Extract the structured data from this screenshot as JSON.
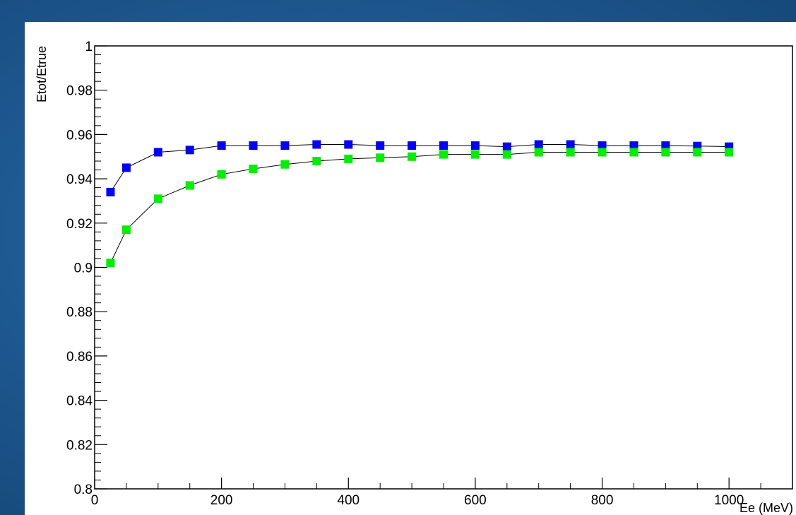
{
  "chart_data": {
    "type": "scatter",
    "title": "",
    "xlabel": "Ee (MeV)",
    "ylabel": "Etot/Etrue",
    "xlim": [
      0,
      1100
    ],
    "ylim": [
      0.8,
      1.0
    ],
    "x_ticks": [
      0,
      200,
      400,
      600,
      800,
      1000
    ],
    "x_tick_labels": [
      "0",
      "200",
      "400",
      "600",
      "800",
      "1000"
    ],
    "y_ticks": [
      0.8,
      0.82,
      0.84,
      0.86,
      0.88,
      0.9,
      0.92,
      0.94,
      0.96,
      0.98,
      1.0
    ],
    "y_tick_labels": [
      "0.8",
      "0.82",
      "0.84",
      "0.86",
      "0.88",
      "0.9",
      "0.92",
      "0.94",
      "0.96",
      "0.98",
      "1"
    ],
    "grid": false,
    "markers": "square",
    "connected": true,
    "series": [
      {
        "color": "#0000ff",
        "x": [
          25,
          50,
          100,
          150,
          200,
          250,
          300,
          350,
          400,
          450,
          500,
          550,
          600,
          650,
          700,
          750,
          800,
          850,
          900,
          950,
          1000
        ],
        "y": [
          0.934,
          0.945,
          0.952,
          0.953,
          0.955,
          0.955,
          0.955,
          0.9555,
          0.9555,
          0.955,
          0.955,
          0.955,
          0.955,
          0.9545,
          0.9555,
          0.9555,
          0.955,
          0.955,
          0.955,
          0.9548,
          0.9545
        ]
      },
      {
        "color": "#00ee00",
        "x": [
          25,
          50,
          100,
          150,
          200,
          250,
          300,
          350,
          400,
          450,
          500,
          550,
          600,
          650,
          700,
          750,
          800,
          850,
          900,
          950,
          1000
        ],
        "y": [
          0.902,
          0.917,
          0.931,
          0.937,
          0.942,
          0.9445,
          0.9465,
          0.948,
          0.949,
          0.9495,
          0.95,
          0.951,
          0.951,
          0.951,
          0.952,
          0.952,
          0.952,
          0.952,
          0.952,
          0.952,
          0.952
        ]
      }
    ]
  }
}
